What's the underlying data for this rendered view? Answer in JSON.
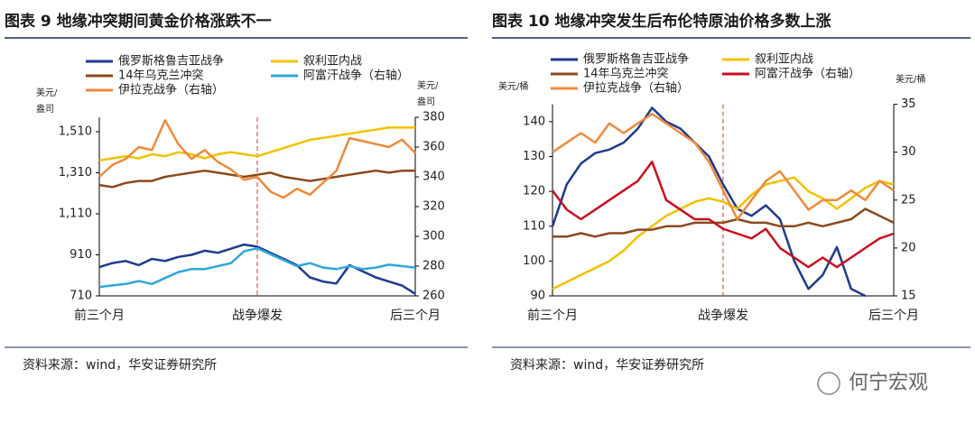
{
  "chart_data": [
    {
      "type": "line",
      "title": "图表 9 地缘冲突期间黄金价格涨跌不一",
      "ylabel_lines": [
        "美元/",
        "盎司"
      ],
      "y2label_lines": [
        "美元/",
        "盎司"
      ],
      "categories": [
        "前三个月",
        null,
        null,
        null,
        null,
        null,
        null,
        null,
        null,
        null,
        null,
        null,
        "战争爆发",
        null,
        null,
        null,
        null,
        null,
        null,
        null,
        null,
        null,
        null,
        null,
        "后三个月"
      ],
      "ylim": [
        710,
        1580
      ],
      "yticks": [
        710,
        910,
        {
          "value": 1110,
          "label": "1,110"
        },
        {
          "value": 1310,
          "label": "1,310"
        },
        {
          "value": 1510,
          "label": "1,510"
        }
      ],
      "y2lim": [
        260,
        380
      ],
      "y2ticks": [
        260,
        280,
        300,
        320,
        340,
        360,
        380
      ],
      "series": [
        {
          "name": "俄罗斯格鲁吉亚战争",
          "color": "#1f3a8f",
          "values": [
            850,
            870,
            880,
            860,
            890,
            880,
            900,
            910,
            930,
            920,
            940,
            960,
            950,
            920,
            890,
            860,
            800,
            780,
            770,
            860,
            830,
            800,
            780,
            760,
            720
          ]
        },
        {
          "name": "叙利亚内战",
          "color": "#f2c200",
          "values": [
            1370,
            1380,
            1390,
            1380,
            1400,
            1390,
            1410,
            1400,
            1380,
            1400,
            1410,
            1400,
            1390,
            1410,
            1430,
            1450,
            1470,
            1480,
            1490,
            1500,
            1510,
            1520,
            1530,
            1530,
            1530
          ]
        },
        {
          "name": "14年乌克兰冲突",
          "color": "#8b4a1c",
          "values": [
            1250,
            1240,
            1260,
            1270,
            1270,
            1290,
            1300,
            1310,
            1320,
            1310,
            1300,
            1290,
            1300,
            1310,
            1290,
            1280,
            1270,
            1280,
            1290,
            1300,
            1310,
            1320,
            1310,
            1320,
            1320
          ]
        },
        {
          "name": "阿富汗战争（右轴）",
          "color": "#2ea7dc",
          "values": [
            266,
            267,
            268,
            270,
            268,
            272,
            276,
            278,
            278,
            280,
            282,
            290,
            292,
            288,
            284,
            280,
            282,
            279,
            278,
            280,
            278,
            279,
            281,
            280,
            279
          ],
          "axis": "y2"
        },
        {
          "name": "伊拉克战争（右轴）",
          "color": "#f08a3c",
          "values": [
            340,
            348,
            352,
            360,
            358,
            378,
            362,
            352,
            358,
            350,
            345,
            338,
            340,
            330,
            326,
            332,
            328,
            336,
            344,
            366,
            364,
            362,
            360,
            365,
            356
          ],
          "axis": "y2"
        }
      ],
      "source": "资料来源：wind，华安证券研究所"
    },
    {
      "type": "line",
      "title": "图表 10 地缘冲突发生后布伦特原油价格多数上涨",
      "ylabel_lines": [
        "美元/桶"
      ],
      "y2label_lines": [
        "美元/桶"
      ],
      "categories": [
        "前三个月",
        null,
        null,
        null,
        null,
        null,
        null,
        null,
        null,
        null,
        null,
        null,
        "战争爆发",
        null,
        null,
        null,
        null,
        null,
        null,
        null,
        null,
        null,
        null,
        null,
        "后三个月"
      ],
      "ylim": [
        90,
        145
      ],
      "yticks": [
        90,
        100,
        110,
        120,
        130,
        140
      ],
      "y2lim": [
        15,
        35
      ],
      "y2ticks": [
        15,
        20,
        25,
        30,
        35
      ],
      "series": [
        {
          "name": "俄罗斯格鲁吉亚战争",
          "color": "#1f3a8f",
          "values": [
            110,
            122,
            128,
            131,
            132,
            134,
            138,
            144,
            140,
            138,
            134,
            130,
            122,
            115,
            113,
            116,
            112,
            100,
            92,
            96,
            104,
            92,
            90,
            null,
            null
          ]
        },
        {
          "name": "叙利亚内战",
          "color": "#f2c200",
          "values": [
            92,
            94,
            96,
            98,
            100,
            103,
            107,
            110,
            113,
            115,
            117,
            118,
            117,
            115,
            119,
            122,
            123,
            124,
            120,
            118,
            115,
            118,
            121,
            123,
            122
          ]
        },
        {
          "name": "14年乌克兰冲突",
          "color": "#8b4a1c",
          "values": [
            107,
            107,
            108,
            107,
            108,
            108,
            109,
            109,
            110,
            110,
            111,
            111,
            111,
            112,
            111,
            111,
            110,
            110,
            111,
            110,
            111,
            112,
            115,
            113,
            111
          ]
        },
        {
          "name": "阿富汗战争（右轴）",
          "color": "#c8101e",
          "values": [
            26,
            24,
            23,
            24,
            25,
            26,
            27,
            29,
            25,
            24,
            23,
            23,
            22,
            21.5,
            21,
            22,
            20,
            19,
            18,
            19,
            18,
            19,
            20,
            21,
            21.5
          ],
          "axis": "y2"
        },
        {
          "name": "伊拉克战争（右轴）",
          "color": "#f08a3c",
          "values": [
            30,
            31,
            32,
            31,
            33,
            32,
            33,
            34,
            33,
            32,
            31,
            29,
            26,
            23,
            25,
            27,
            28,
            26,
            24,
            25,
            25,
            26,
            25,
            27,
            26
          ],
          "axis": "y2"
        }
      ],
      "source": "资料来源：wind，华安证券研究所"
    }
  ],
  "watermark": "何宁宏观"
}
